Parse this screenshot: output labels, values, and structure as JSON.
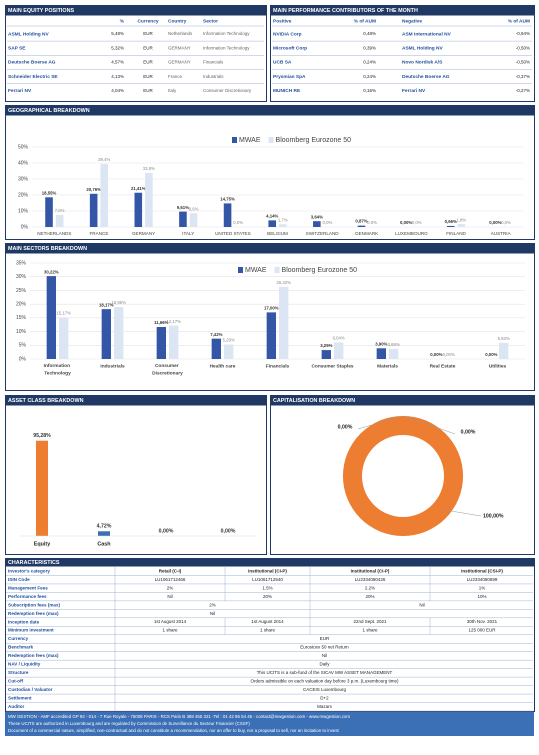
{
  "equity_positions": {
    "title": "MAIN EQUITY POSITIONS",
    "columns": [
      "%",
      "Currency",
      "Country",
      "Sector"
    ],
    "rows": [
      [
        "ASML Holding NV",
        "5,48%",
        "EUR",
        "Netherlands",
        "Information Technology"
      ],
      [
        "SAP SE",
        "5,32%",
        "EUR",
        "GERMANY",
        "Information Technology"
      ],
      [
        "Deutsche Boerse AG",
        "4,57%",
        "EUR",
        "GERMANY",
        "Financials"
      ],
      [
        "Schneider Electric SE",
        "4,13%",
        "EUR",
        "France",
        "Industrials"
      ],
      [
        "Ferrari NV",
        "4,04%",
        "EUR",
        "Italy",
        "Consumer Discretionary"
      ]
    ]
  },
  "contributors": {
    "title": "MAIN PERFORMANCE CONTRIBUTORS OF THE MONTH",
    "columns": [
      "Positive",
      "% of AUM",
      "Negative",
      "% of AUM"
    ],
    "rows": [
      [
        "NVIDIA Corp",
        "0,48%",
        "ASM International NV",
        "-0,94%"
      ],
      [
        "Microsoft Corp",
        "0,39%",
        "ASML Holding NV",
        "-0,50%"
      ],
      [
        "UCB SA",
        "0,24%",
        "Novo Nordisk A/S",
        "-0,50%"
      ],
      [
        "Prysmian SpA",
        "0,24%",
        "Deutsche Boerse AG",
        "-0,37%"
      ],
      [
        "MUNICH RE",
        "0,16%",
        "Ferrari NV",
        "-0,27%"
      ]
    ]
  },
  "chart_data": [
    {
      "type": "bar",
      "title": "GEOGRAPHICAL BREAKDOWN",
      "categories": [
        "NETHERLANDS",
        "FRANCE",
        "GERMANY",
        "ITALY",
        "UNITED STATES",
        "BELGIUM",
        "SWITZERLAND",
        "DENMARK",
        "LUXEMBOURG",
        "FINLAND",
        "AUSTRIA"
      ],
      "series": [
        {
          "name": "MWAE",
          "color": "#3456a6",
          "values": [
            18.55,
            20.76,
            21.41,
            9.61,
            14.75,
            4.14,
            3.64,
            0.87,
            0.0,
            0.66,
            0.0
          ],
          "value_labels": [
            "18,55%",
            "20,76%",
            "21,41%",
            "9,61%",
            "14,75%",
            "4,14%",
            "3,64%",
            "0,87%",
            "0,00%",
            "0,66%",
            "0,00%"
          ]
        },
        {
          "name": "Bloomberg Eurozone 50",
          "color": "#dbe5f3",
          "values": [
            7.6,
            39.4,
            33.8,
            8.6,
            0.0,
            1.7,
            0.0,
            0.0,
            0.0,
            1.8,
            0.0
          ],
          "value_labels": [
            "7,6%",
            "39,4%",
            "33,8%",
            "8,6%",
            "0,0%",
            "1,7%",
            "0,0%",
            "0,0%",
            "0,0%",
            "1,8%",
            "0,0%"
          ]
        }
      ],
      "ylim": [
        0,
        50
      ],
      "yticks": [
        {
          "value": 0,
          "label": "0%"
        },
        {
          "value": 10,
          "label": "10%"
        },
        {
          "value": 20,
          "label": "20%"
        },
        {
          "value": 30,
          "label": "30%"
        },
        {
          "value": 40,
          "label": "40%"
        },
        {
          "value": 50,
          "label": "50%"
        }
      ],
      "grid": true
    },
    {
      "type": "bar",
      "title": "MAIN SECTORS BREAKDOWN",
      "categories": [
        "Information Technology",
        "Industrials",
        "Consumer Discretionary",
        "Health care",
        "Financials",
        "Consumer Staples",
        "Materials",
        "Real Estate",
        "Utilities"
      ],
      "series": [
        {
          "name": "MWAE",
          "color": "#3456a6",
          "values": [
            30.22,
            18.17,
            11.66,
            7.42,
            17.0,
            3.25,
            3.9,
            0.0,
            0.0
          ],
          "value_labels": [
            "30,22%",
            "18,17%",
            "11,66%",
            "7,42%",
            "17,00%",
            "3,25%",
            "3,90%",
            "0,00%",
            "0,00%"
          ]
        },
        {
          "name": "Bloomberg Eurozone 50",
          "color": "#dbe5f3",
          "values": [
            15.17,
            18.95,
            12.17,
            5.29,
            26.32,
            6.04,
            3.68,
            0.0,
            5.93
          ],
          "value_labels": [
            "15,17%",
            "18,95%",
            "12,17%",
            "5,29%",
            "26,32%",
            "6,04%",
            "3,68%",
            "0,00%",
            "5,93%"
          ]
        }
      ],
      "ylim": [
        0,
        35
      ],
      "yticks": [
        {
          "value": 0,
          "label": "0%"
        },
        {
          "value": 5,
          "label": "5%"
        },
        {
          "value": 10,
          "label": "10%"
        },
        {
          "value": 15,
          "label": "15%"
        },
        {
          "value": 20,
          "label": "20%"
        },
        {
          "value": 25,
          "label": "25%"
        },
        {
          "value": 30,
          "label": "30%"
        },
        {
          "value": 35,
          "label": "35%"
        }
      ],
      "grid": true
    },
    {
      "type": "column",
      "title": "ASSET CLASS BREAKDOWN",
      "categories": [
        "Equity",
        "Cash",
        null,
        null
      ],
      "values": [
        95.28,
        4.72,
        0.0,
        0.0
      ],
      "value_labels": [
        "95,28%",
        "4,72%",
        "0,00%",
        "0,00%"
      ],
      "colors": [
        "#ed7d31",
        "#3b6fb6",
        "#ed7d31",
        "#ed7d31"
      ]
    },
    {
      "type": "pie",
      "title": "CAPITALISATION BREAKDOWN",
      "values": [
        0.0,
        0.0,
        100.0
      ],
      "value_labels": [
        "0,00%",
        "0,00%",
        "100,00%"
      ],
      "colors": [
        "#e99fb4",
        "#c8ccd3",
        "#ed7d31"
      ]
    }
  ],
  "characteristics": {
    "title": "CHARACTERISTICS",
    "rows": [
      {
        "label": "Investor's category",
        "cells": [
          "Retail (C-I)",
          "Institutional (CI-P)",
          "Institutional (CI-P)",
          "Institutional (CSI-P)"
        ]
      },
      {
        "label": "ISIN Code",
        "cells": [
          "LU1061712466",
          "LU1061712540",
          "LU2334080426",
          "LU2334080699"
        ]
      },
      {
        "label": "Management Fees",
        "cells": [
          "2%",
          "1.5%",
          "2.2%",
          "1%"
        ]
      },
      {
        "label": "Performance fees",
        "cells": [
          "Nil",
          "20%",
          "20%",
          "10%"
        ]
      },
      {
        "label": "Subscription fees (max)",
        "cells": [
          "2%",
          "Nil"
        ]
      },
      {
        "label": "Redemption fees (max)",
        "cells": [
          "Nil",
          null
        ]
      },
      {
        "label": "Inception date",
        "cells": [
          "1st August 2014",
          "1st August 2014",
          "22nd Sept. 2021",
          "30th Nov. 2021"
        ]
      },
      {
        "label": "Minimum investment",
        "cells": [
          "1 share",
          "1 share",
          "1 share",
          "125 000 EUR"
        ]
      },
      {
        "label": "Currency",
        "cells": [
          "EUR"
        ]
      },
      {
        "label": "Benchmark",
        "cells": [
          "Eurostoxx 50 net Return"
        ]
      },
      {
        "label": "Redemption fees (max)",
        "cells": [
          "Nil"
        ]
      },
      {
        "label": "NAV / Liquidity",
        "cells": [
          "Daily"
        ]
      },
      {
        "label": "Structure",
        "cells": [
          "This UCITS is a sub-fund of the SICAV MW ASSET MANAGEMENT"
        ]
      },
      {
        "label": "Cut-off",
        "cells": [
          "Orders admissible on each valuation day before 3 p.m. (Luxembourg time)"
        ]
      },
      {
        "label": "Custodian / Valuator",
        "cells": [
          "CACEIS Luxembourg"
        ]
      },
      {
        "label": "Settlement",
        "cells": [
          "D+2"
        ]
      },
      {
        "label": "Auditor",
        "cells": [
          "Mazars"
        ]
      }
    ]
  },
  "footer": [
    "MW GESTION - AMF accredited GP 92 - 014 - 7 Rue Royale - 75008 PARIS - RCS Paris B 388 455 321 -Tel : 01 42 86 54 45 - contact@mwgestion.com - www.mwgestion.com",
    "These UCITS are authorized in Luxembourg and are regulated by Commission de Surveillance du Secteur Financier (CSSF)",
    "Document of a commercial nature, simplified, non-contractual and do not constitute a recommendation, nor an offer to buy, nor a proposal to sell, nor an incitation to invest"
  ]
}
